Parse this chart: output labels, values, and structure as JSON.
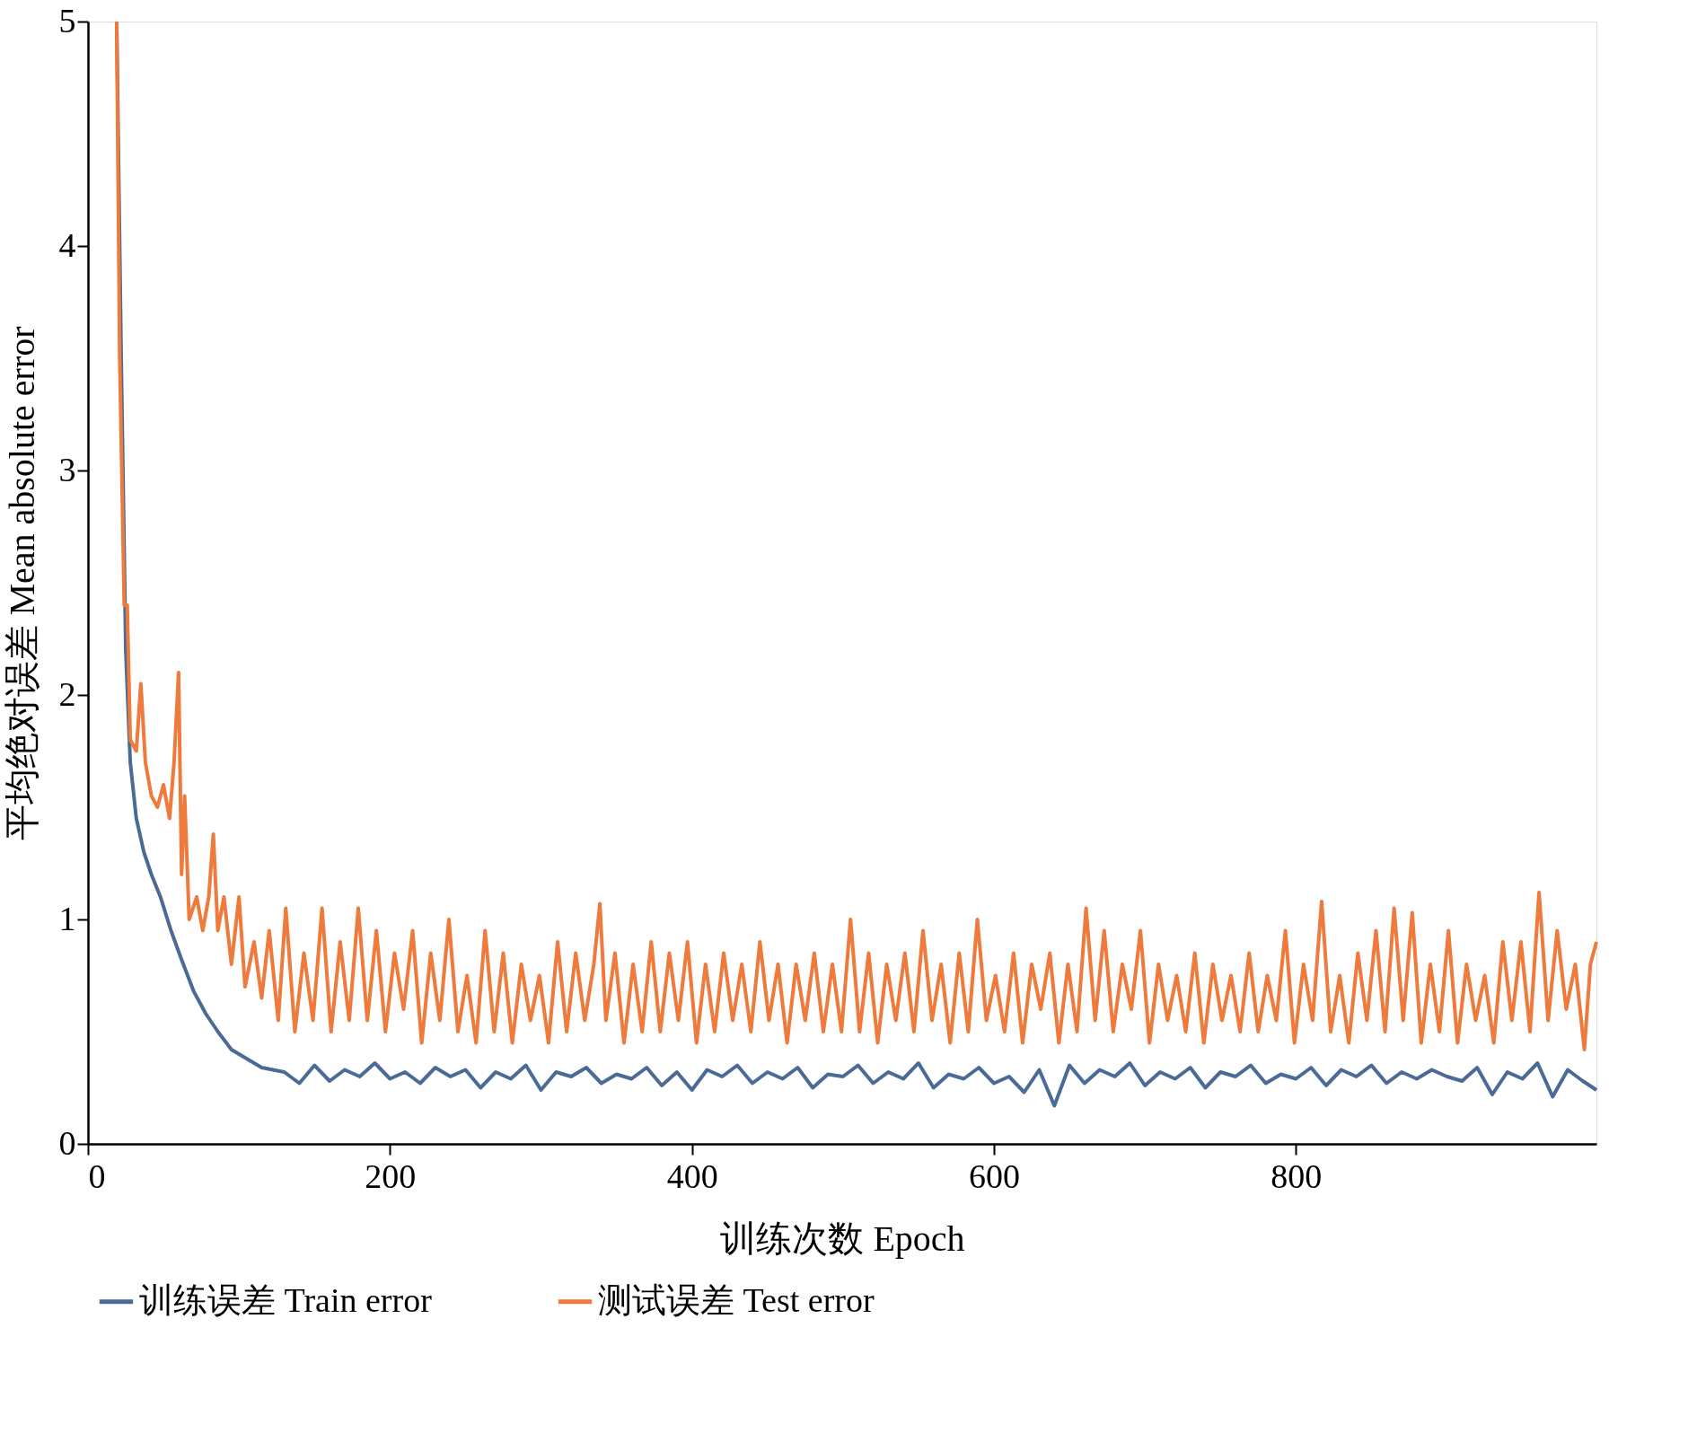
{
  "chart_data": {
    "type": "line",
    "xlabel": "训练次数  Epoch",
    "ylabel": "平均绝对误差  Mean absolute error",
    "xlim": [
      0,
      999
    ],
    "ylim": [
      0,
      5
    ],
    "xticks": [
      0,
      200,
      400,
      600,
      800
    ],
    "yticks": [
      0,
      1,
      2,
      3,
      4,
      5
    ],
    "grid": false,
    "legend": "bottom",
    "marker": "none",
    "line_style": "solid",
    "series": [
      {
        "name": "训练误差  Train error",
        "color": "#4a6b96",
        "x": [
          19,
          22,
          25,
          28,
          32,
          37,
          42,
          48,
          55,
          62,
          70,
          78,
          86,
          95,
          105,
          115,
          130,
          140,
          150,
          160,
          170,
          180,
          190,
          200,
          210,
          220,
          230,
          240,
          250,
          260,
          270,
          280,
          290,
          300,
          310,
          320,
          330,
          340,
          350,
          360,
          370,
          380,
          390,
          400,
          410,
          420,
          430,
          440,
          450,
          460,
          470,
          480,
          490,
          500,
          510,
          520,
          530,
          540,
          550,
          560,
          570,
          580,
          590,
          600,
          610,
          620,
          630,
          640,
          650,
          660,
          670,
          680,
          690,
          700,
          710,
          720,
          730,
          740,
          750,
          760,
          770,
          780,
          790,
          800,
          810,
          820,
          830,
          840,
          850,
          860,
          870,
          880,
          890,
          900,
          910,
          920,
          930,
          940,
          950,
          960,
          970,
          980,
          990,
          999
        ],
        "values": [
          5,
          3.5,
          2.2,
          1.7,
          1.45,
          1.3,
          1.2,
          1.1,
          0.95,
          0.82,
          0.68,
          0.58,
          0.5,
          0.42,
          0.38,
          0.34,
          0.32,
          0.27,
          0.35,
          0.28,
          0.33,
          0.3,
          0.36,
          0.29,
          0.32,
          0.27,
          0.34,
          0.3,
          0.33,
          0.25,
          0.32,
          0.29,
          0.35,
          0.24,
          0.32,
          0.3,
          0.34,
          0.27,
          0.31,
          0.29,
          0.34,
          0.26,
          0.32,
          0.24,
          0.33,
          0.3,
          0.35,
          0.27,
          0.32,
          0.29,
          0.34,
          0.25,
          0.31,
          0.3,
          0.35,
          0.27,
          0.32,
          0.29,
          0.36,
          0.25,
          0.31,
          0.29,
          0.34,
          0.27,
          0.3,
          0.23,
          0.33,
          0.17,
          0.35,
          0.27,
          0.33,
          0.3,
          0.36,
          0.26,
          0.32,
          0.29,
          0.34,
          0.25,
          0.32,
          0.3,
          0.35,
          0.27,
          0.31,
          0.29,
          0.34,
          0.26,
          0.33,
          0.3,
          0.35,
          0.27,
          0.32,
          0.29,
          0.33,
          0.3,
          0.28,
          0.34,
          0.22,
          0.32,
          0.29,
          0.36,
          0.21,
          0.33,
          0.28,
          0.24
        ]
      },
      {
        "name": "测试误差  Test error",
        "color": "#ee7a3c",
        "x": [
          19,
          21,
          24,
          26,
          28,
          32,
          35,
          38,
          42,
          46,
          50,
          54,
          57,
          60,
          62,
          64,
          67,
          72,
          76,
          80,
          83,
          86,
          90,
          95,
          100,
          104,
          110,
          115,
          120,
          126,
          131,
          137,
          143,
          149,
          155,
          161,
          167,
          173,
          179,
          185,
          191,
          197,
          203,
          209,
          215,
          221,
          227,
          233,
          239,
          245,
          251,
          257,
          263,
          269,
          275,
          281,
          287,
          293,
          299,
          305,
          311,
          317,
          323,
          329,
          335,
          339,
          343,
          349,
          355,
          361,
          367,
          373,
          379,
          385,
          391,
          397,
          403,
          409,
          415,
          421,
          427,
          433,
          439,
          445,
          451,
          457,
          463,
          469,
          475,
          481,
          487,
          493,
          499,
          505,
          511,
          517,
          523,
          529,
          535,
          541,
          547,
          553,
          559,
          565,
          571,
          577,
          583,
          589,
          595,
          601,
          607,
          613,
          619,
          625,
          631,
          637,
          643,
          649,
          655,
          661,
          667,
          673,
          679,
          685,
          691,
          697,
          703,
          709,
          715,
          721,
          727,
          733,
          739,
          745,
          751,
          757,
          763,
          769,
          775,
          781,
          787,
          793,
          799,
          805,
          811,
          817,
          823,
          829,
          835,
          841,
          847,
          853,
          859,
          865,
          871,
          877,
          883,
          889,
          895,
          901,
          907,
          913,
          919,
          925,
          931,
          937,
          943,
          949,
          955,
          961,
          967,
          973,
          979,
          985,
          991,
          995,
          999
        ],
        "values": [
          5,
          3.5,
          2.4,
          2.4,
          1.8,
          1.75,
          2.05,
          1.7,
          1.55,
          1.5,
          1.6,
          1.45,
          1.7,
          2.1,
          1.2,
          1.55,
          1.0,
          1.1,
          0.95,
          1.1,
          1.38,
          0.95,
          1.1,
          0.8,
          1.1,
          0.7,
          0.9,
          0.65,
          0.95,
          0.55,
          1.05,
          0.5,
          0.85,
          0.55,
          1.05,
          0.5,
          0.9,
          0.55,
          1.05,
          0.55,
          0.95,
          0.5,
          0.85,
          0.6,
          0.95,
          0.45,
          0.85,
          0.55,
          1.0,
          0.5,
          0.75,
          0.45,
          0.95,
          0.5,
          0.85,
          0.45,
          0.8,
          0.55,
          0.75,
          0.45,
          0.9,
          0.5,
          0.85,
          0.55,
          0.8,
          1.07,
          0.55,
          0.85,
          0.45,
          0.8,
          0.5,
          0.9,
          0.5,
          0.85,
          0.55,
          0.9,
          0.45,
          0.8,
          0.5,
          0.85,
          0.55,
          0.8,
          0.5,
          0.9,
          0.55,
          0.8,
          0.45,
          0.8,
          0.55,
          0.85,
          0.5,
          0.8,
          0.5,
          1.0,
          0.5,
          0.85,
          0.45,
          0.8,
          0.55,
          0.85,
          0.5,
          0.95,
          0.55,
          0.8,
          0.45,
          0.85,
          0.5,
          1.0,
          0.55,
          0.75,
          0.5,
          0.85,
          0.45,
          0.8,
          0.6,
          0.85,
          0.45,
          0.8,
          0.5,
          1.05,
          0.55,
          0.95,
          0.5,
          0.8,
          0.6,
          0.95,
          0.45,
          0.8,
          0.55,
          0.75,
          0.5,
          0.85,
          0.45,
          0.8,
          0.55,
          0.75,
          0.5,
          0.85,
          0.5,
          0.75,
          0.55,
          0.95,
          0.45,
          0.8,
          0.55,
          1.08,
          0.5,
          0.75,
          0.45,
          0.85,
          0.55,
          0.95,
          0.5,
          1.05,
          0.55,
          1.03,
          0.45,
          0.8,
          0.5,
          0.95,
          0.45,
          0.8,
          0.55,
          0.75,
          0.45,
          0.9,
          0.55,
          0.9,
          0.5,
          1.12,
          0.55,
          0.95,
          0.6,
          0.8,
          0.42,
          0.8,
          0.9
        ]
      }
    ]
  }
}
